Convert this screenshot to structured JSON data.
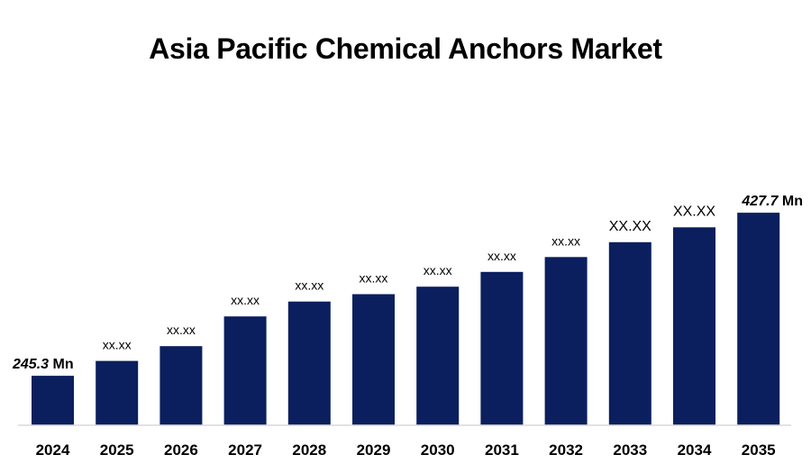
{
  "title": "Asia Pacific Chemical Anchors Market",
  "chart_data": {
    "type": "bar",
    "title": "Asia Pacific Chemical Anchors Market",
    "xlabel": "",
    "ylabel": "",
    "categories": [
      "2024",
      "2025",
      "2026",
      "2027",
      "2028",
      "2029",
      "2030",
      "2031",
      "2032",
      "2033",
      "2034",
      "2035"
    ],
    "values": [
      245.3,
      261.9,
      278.5,
      311.7,
      328.3,
      336.6,
      344.9,
      361.5,
      378.1,
      394.7,
      411.3,
      427.7
    ],
    "data_labels": [
      {
        "value": "245.3",
        "unit": " Mn"
      },
      {
        "value": "xx.xx",
        "unit": ""
      },
      {
        "value": "xx.xx",
        "unit": ""
      },
      {
        "value": "xx.xx",
        "unit": ""
      },
      {
        "value": "xx.xx",
        "unit": ""
      },
      {
        "value": "xx.xx",
        "unit": ""
      },
      {
        "value": "xx.xx",
        "unit": ""
      },
      {
        "value": "xx.xx",
        "unit": ""
      },
      {
        "value": "xx.xx",
        "unit": ""
      },
      {
        "value": "XX.XX",
        "unit": ""
      },
      {
        "value": "XX.XX",
        "unit": ""
      },
      {
        "value": "427.7",
        "unit": " Mn"
      }
    ],
    "ylim": [
      190,
      460
    ],
    "bar_color": "#0b1f5e",
    "axis_color": "#d9d9d9",
    "grid": false,
    "legend": "none"
  }
}
